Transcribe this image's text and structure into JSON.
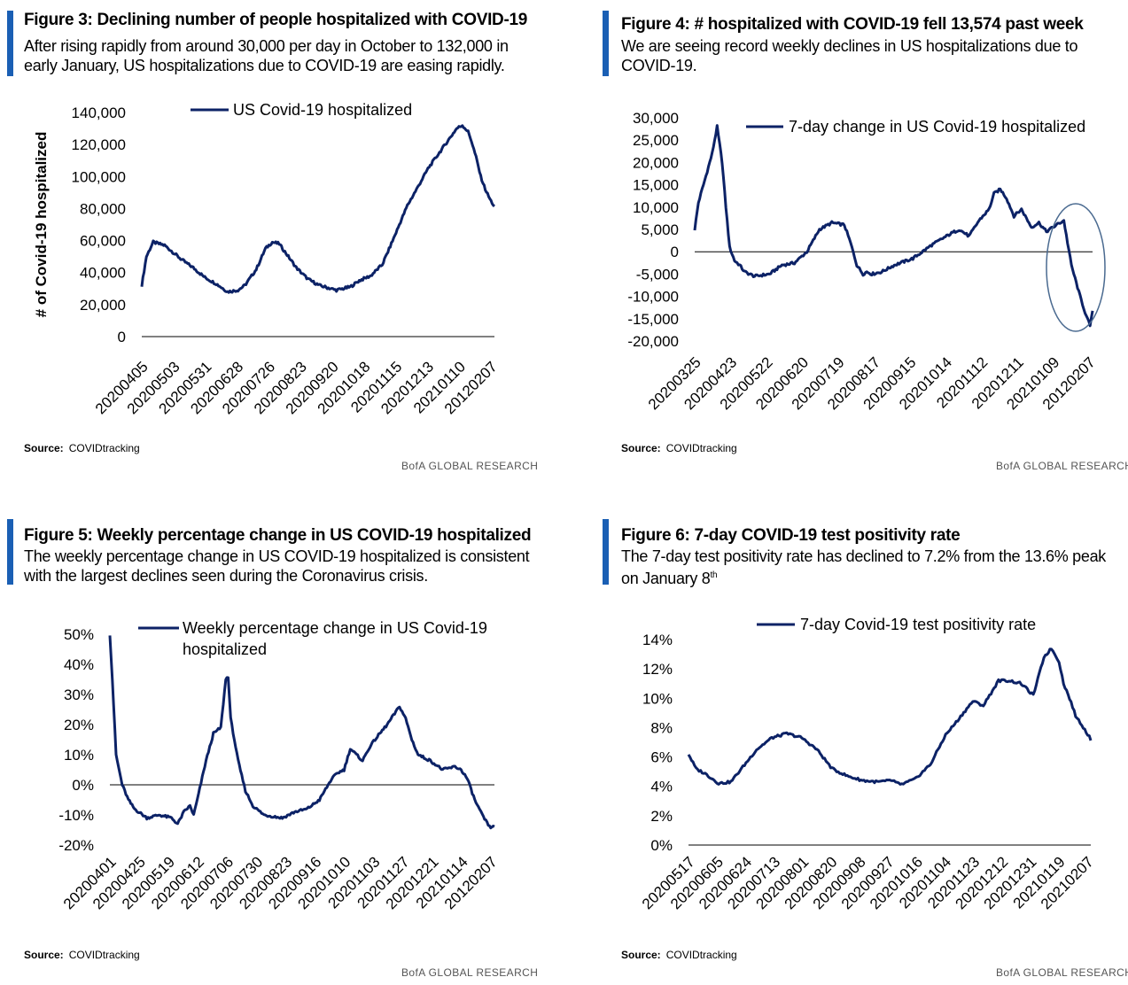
{
  "brand": "BofA GLOBAL RESEARCH",
  "colors": {
    "line": "#0c2266",
    "accent_bar": "#1a5fb4",
    "ellipse": "#4a6a90"
  },
  "figures": [
    {
      "title": "Figure 3: Declining number of people hospitalized with COVID-19",
      "description": "After rising rapidly from around 30,000 per day in October to 132,000 in early January, US hospitalizations due to COVID-19 are easing rapidly.",
      "source_label": "Source:",
      "source_value": "COVIDtracking"
    },
    {
      "title": "Figure 4: # hospitalized with COVID-19 fell 13,574 past week",
      "description": "We are seeing record weekly declines in US hospitalizations due to COVID-19.",
      "source_label": "Source:",
      "source_value": "COVIDtracking"
    },
    {
      "title": "Figure 5: Weekly percentage change in US COVID-19 hospitalized",
      "description": "The weekly percentage change in US COVID-19 hospitalized is consistent with the largest declines seen during the Coronavirus crisis.",
      "source_label": "Source:",
      "source_value": "COVIDtracking"
    },
    {
      "title": "Figure 6: 7-day COVID-19 test positivity rate",
      "description_main": "The 7-day test positivity rate has declined to 7.2% from the 13.6% peak on January 8",
      "description_sup": "th",
      "source_label": "Source:",
      "source_value": "COVIDtracking"
    }
  ],
  "chart_data": [
    {
      "type": "line",
      "title": "Figure 3: Declining number of people hospitalized with COVID-19",
      "ylabel": "# of Covid-19 hospitalized",
      "xlabel": "",
      "legend": "US Covid-19 hospitalized",
      "ylim": [
        0,
        140000
      ],
      "yticks": [
        0,
        20000,
        40000,
        60000,
        80000,
        100000,
        120000,
        140000
      ],
      "ytick_labels": [
        "0",
        "20,000",
        "40,000",
        "60,000",
        "80,000",
        "100,000",
        "120,000",
        "140,000"
      ],
      "xtick_labels": [
        "20200405",
        "20200503",
        "20200531",
        "20200628",
        "20200726",
        "20200823",
        "20200920",
        "20201018",
        "20201115",
        "20201213",
        "20210110",
        "20120207"
      ],
      "n_points": 308,
      "series": [
        {
          "name": "US Covid-19 hospitalized",
          "x": [
            0,
            4,
            10,
            20,
            35,
            45,
            55,
            65,
            75,
            84,
            90,
            100,
            108,
            114,
            120,
            128,
            135,
            145,
            155,
            165,
            170,
            182,
            190,
            200,
            210,
            215,
            225,
            232,
            240,
            250,
            260,
            270,
            275,
            280,
            285,
            288,
            292,
            296,
            300,
            304,
            308
          ],
          "values": [
            32000,
            50000,
            59000,
            57000,
            48000,
            43000,
            37000,
            33000,
            28000,
            29000,
            32000,
            42000,
            55000,
            59000,
            58000,
            50000,
            43000,
            36000,
            32000,
            30000,
            29000,
            31000,
            35000,
            38000,
            45000,
            53000,
            70000,
            82000,
            92000,
            105000,
            115000,
            125000,
            130000,
            132000,
            128000,
            122000,
            112000,
            100000,
            92000,
            86000,
            81000
          ]
        }
      ]
    },
    {
      "type": "line",
      "title": "Figure 4: # hospitalized with COVID-19 fell 13,574 past week",
      "legend": "7-day change in US Covid-19 hospitalized",
      "ylim": [
        -20000,
        30000
      ],
      "yticks": [
        -20000,
        -15000,
        -10000,
        -5000,
        0,
        5000,
        10000,
        15000,
        20000,
        25000,
        30000
      ],
      "ytick_labels": [
        "-20,000",
        "-15,000",
        "-10,000",
        "-5,000",
        "0",
        "5,000",
        "10,000",
        "15,000",
        "20,000",
        "25,000",
        "30,000"
      ],
      "xtick_labels": [
        "20200325",
        "20200423",
        "20200522",
        "20200620",
        "20200719",
        "20200817",
        "20200915",
        "20201014",
        "20201112",
        "20201211",
        "20210109",
        "20120207"
      ],
      "n_points": 319,
      "annotation": "ellipse around latest decline",
      "series": [
        {
          "name": "7-day change in US Covid-19 hospitalized",
          "x": [
            0,
            3,
            8,
            14,
            18,
            22,
            25,
            28,
            32,
            36,
            40,
            48,
            60,
            70,
            80,
            90,
            100,
            110,
            120,
            125,
            130,
            135,
            138,
            142,
            150,
            160,
            175,
            190,
            205,
            212,
            220,
            228,
            236,
            240,
            245,
            250,
            256,
            262,
            266,
            270,
            276,
            282,
            290,
            296,
            302,
            308,
            314,
            317,
            319
          ],
          "values": [
            5000,
            11000,
            16000,
            22000,
            28000,
            20000,
            10000,
            1000,
            -2000,
            -3000,
            -4500,
            -5500,
            -5000,
            -3000,
            -2500,
            0,
            5000,
            6500,
            6000,
            2000,
            -3000,
            -5000,
            -4500,
            -5000,
            -4500,
            -3000,
            -1500,
            1500,
            4000,
            5000,
            3500,
            7000,
            9500,
            13000,
            14000,
            12000,
            8000,
            9500,
            7500,
            5500,
            6500,
            4500,
            6000,
            7000,
            -3000,
            -9000,
            -14500,
            -16500,
            -13500
          ]
        }
      ]
    },
    {
      "type": "line",
      "title": "Figure 5: Weekly percentage change in US COVID-19 hospitalized",
      "legend": "Weekly percentage change in US Covid-19 hospitalized",
      "ylim": [
        -20,
        50
      ],
      "yticks": [
        -20,
        -10,
        0,
        10,
        20,
        30,
        40,
        50
      ],
      "ytick_labels": [
        "-20%",
        "-10%",
        "0%",
        "10%",
        "20%",
        "30%",
        "40%",
        "50%"
      ],
      "xtick_labels": [
        "20200401",
        "20200425",
        "20200519",
        "20200612",
        "20200706",
        "20200730",
        "20200823",
        "20200916",
        "20201010",
        "20201103",
        "20201127",
        "20201221",
        "20210114",
        "20120207"
      ],
      "n_points": 312,
      "series": [
        {
          "name": "Weekly percentage change in US Covid-19 hospitalized",
          "x": [
            0,
            2,
            5,
            10,
            15,
            20,
            30,
            40,
            50,
            55,
            60,
            65,
            68,
            72,
            78,
            84,
            90,
            94,
            96,
            98,
            104,
            110,
            116,
            125,
            140,
            150,
            160,
            170,
            180,
            185,
            190,
            195,
            200,
            205,
            210,
            215,
            225,
            235,
            240,
            245,
            250,
            260,
            270,
            280,
            285,
            290,
            296,
            302,
            308,
            312
          ],
          "values": [
            50,
            35,
            10,
            0,
            -5,
            -8,
            -11,
            -10,
            -11,
            -13,
            -9,
            -7,
            -10,
            -3,
            8,
            17,
            19,
            35,
            36,
            22,
            8,
            -2,
            -7,
            -10,
            -11,
            -9,
            -8,
            -5,
            2,
            4,
            5,
            12,
            10,
            8,
            12,
            15,
            20,
            26,
            22,
            15,
            10,
            8,
            5,
            6,
            5,
            2,
            -5,
            -10,
            -14,
            -14
          ]
        }
      ]
    },
    {
      "type": "line",
      "title": "Figure 6: 7-day COVID-19 test positivity rate",
      "legend": "7-day Covid-19 test positivity rate",
      "ylim": [
        0,
        14
      ],
      "yticks": [
        0,
        2,
        4,
        6,
        8,
        10,
        12,
        14
      ],
      "ytick_labels": [
        "0%",
        "2%",
        "4%",
        "6%",
        "8%",
        "10%",
        "12%",
        "14%"
      ],
      "xtick_labels": [
        "20200517",
        "20200605",
        "20200624",
        "20200713",
        "20200801",
        "20200820",
        "20200908",
        "20200927",
        "20201016",
        "20201104",
        "20201123",
        "20201212",
        "20201231",
        "20210119",
        "20210207"
      ],
      "n_points": 266,
      "series": [
        {
          "name": "7-day Covid-19 test positivity rate",
          "x": [
            0,
            5,
            12,
            20,
            28,
            35,
            45,
            55,
            65,
            75,
            85,
            95,
            105,
            115,
            125,
            135,
            140,
            150,
            160,
            170,
            178,
            188,
            195,
            205,
            212,
            220,
            228,
            235,
            240,
            245,
            248,
            252,
            256,
            260,
            266
          ],
          "values": [
            6.2,
            5.2,
            4.8,
            4.2,
            4.3,
            5.2,
            6.5,
            7.3,
            7.6,
            7.3,
            6.5,
            5.2,
            4.7,
            4.4,
            4.3,
            4.4,
            4.1,
            4.5,
            5.5,
            7.5,
            8.5,
            9.8,
            9.5,
            11.2,
            11.2,
            11.0,
            10.2,
            12.8,
            13.4,
            12.5,
            11.0,
            10.0,
            8.8,
            8.2,
            7.2
          ]
        }
      ]
    }
  ]
}
